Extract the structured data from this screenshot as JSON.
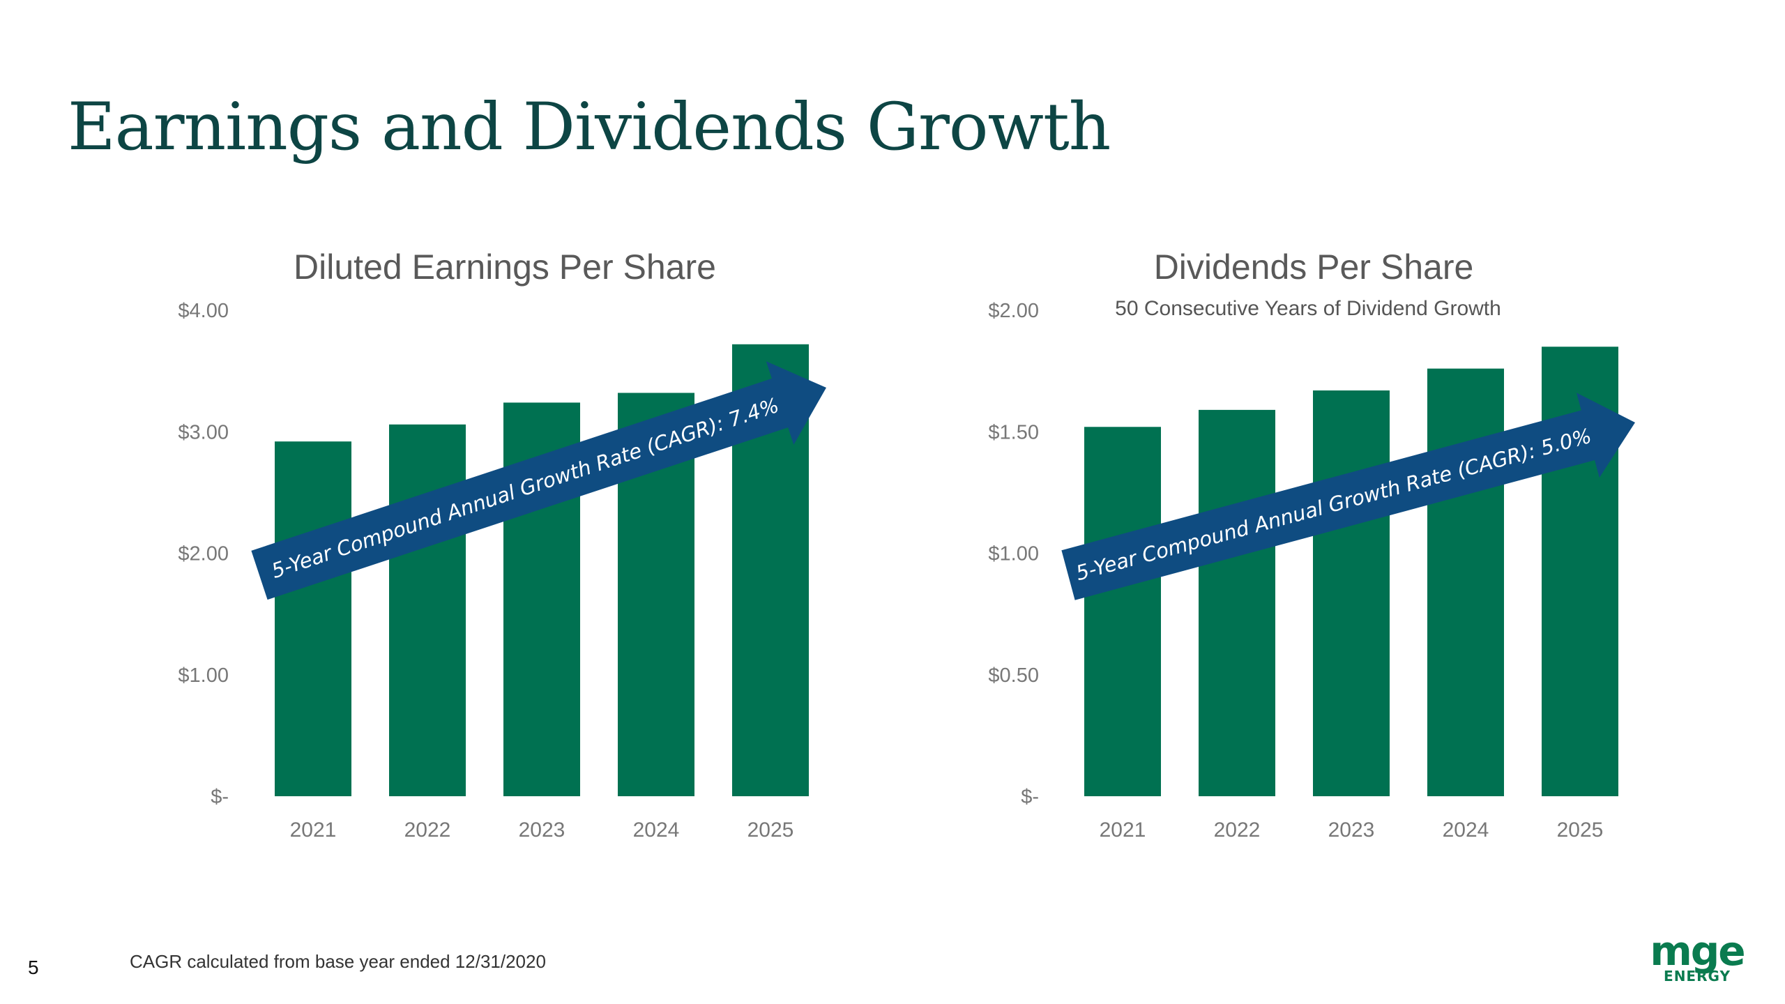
{
  "slide": {
    "title": "Earnings and Dividends Growth",
    "footnote": "CAGR calculated from base year ended 12/31/2020",
    "page_number": "5",
    "logo": {
      "text_main": "mge",
      "text_sub": "ENERGY",
      "color": "#0a7b4f"
    }
  },
  "colors": {
    "bar": "#007151",
    "arrow": "#0f4c81",
    "title": "#0d4544",
    "axis_text": "#777777",
    "chart_title": "#595959"
  },
  "chart_data": [
    {
      "type": "bar",
      "title": "Diluted Earnings Per Share",
      "subtitle": "",
      "categories": [
        "2021",
        "2022",
        "2023",
        "2024",
        "2025"
      ],
      "values": [
        2.92,
        3.06,
        3.24,
        3.32,
        3.72
      ],
      "ylim": [
        0,
        4
      ],
      "yticks": [
        0,
        1,
        2,
        3,
        4
      ],
      "ytick_labels": [
        "$-",
        "$1.00",
        "$2.00",
        "$3.00",
        "$4.00"
      ],
      "grid": false,
      "annotation": "5-Year Compound Annual Growth Rate (CAGR): 7.4%"
    },
    {
      "type": "bar",
      "title": "Dividends Per Share",
      "subtitle": "50 Consecutive Years of Dividend Growth",
      "categories": [
        "2021",
        "2022",
        "2023",
        "2024",
        "2025"
      ],
      "values": [
        1.52,
        1.59,
        1.67,
        1.76,
        1.85
      ],
      "ylim": [
        0,
        2
      ],
      "yticks": [
        0,
        0.5,
        1,
        1.5,
        2
      ],
      "ytick_labels": [
        "$-",
        "$0.50",
        "$1.00",
        "$1.50",
        "$2.00"
      ],
      "grid": false,
      "annotation": "5-Year Compound Annual Growth Rate (CAGR): 5.0%"
    }
  ]
}
